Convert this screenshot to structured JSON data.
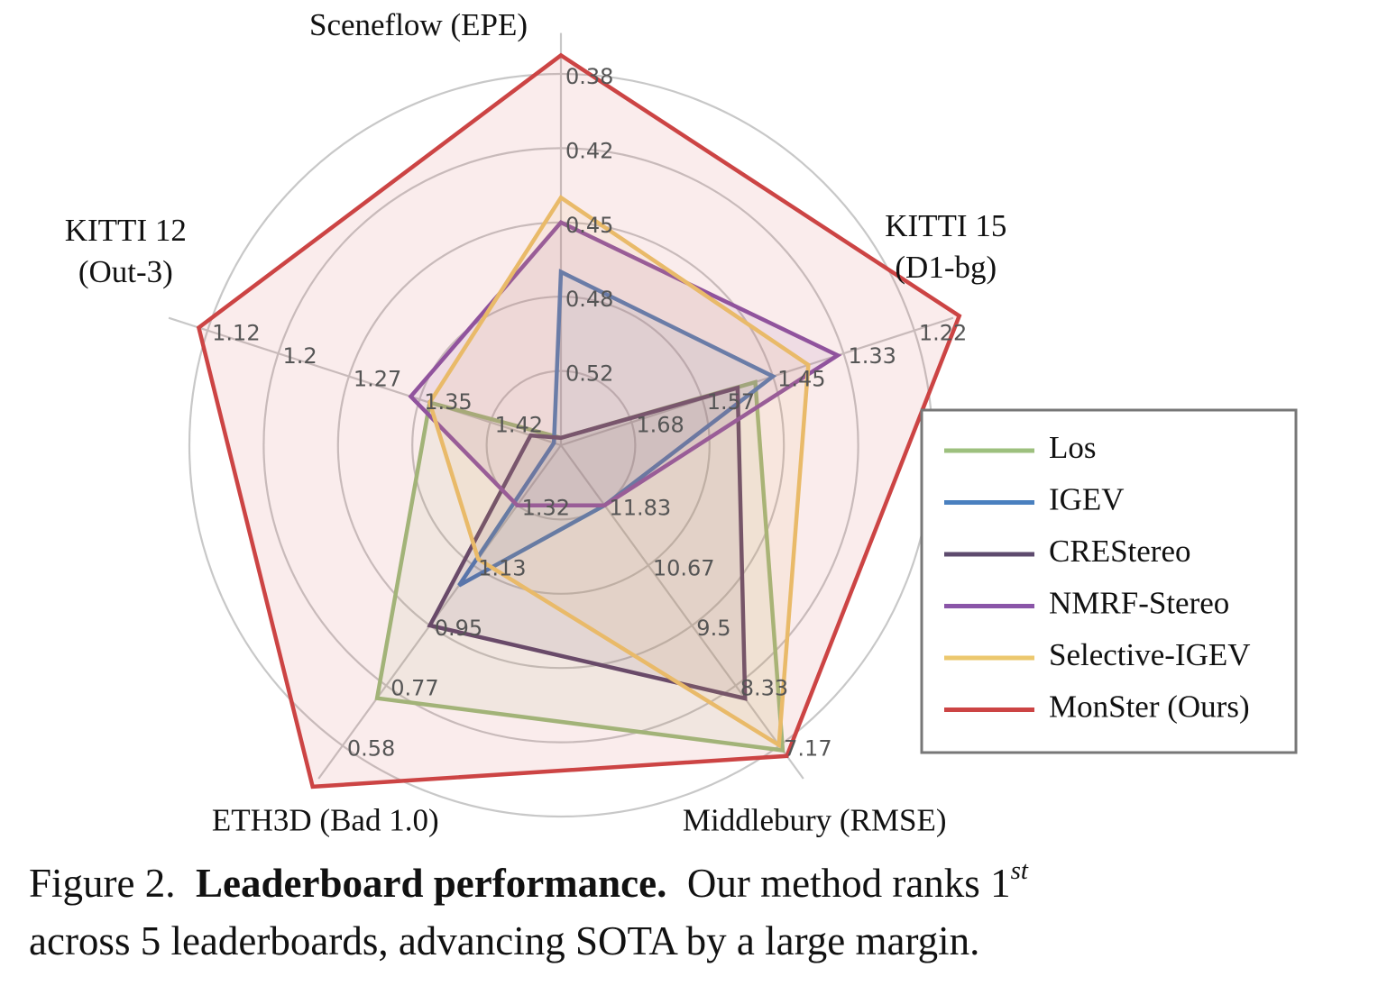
{
  "chart_data": {
    "type": "radar",
    "axes": [
      {
        "name": "Sceneflow (EPE)",
        "lines": [
          "Sceneflow (EPE)"
        ],
        "ticks": [
          "0.38",
          "0.42",
          "0.45",
          "0.48",
          "0.52"
        ]
      },
      {
        "name": "KITTI 15 (D1-bg)",
        "lines": [
          "KITTI 15",
          "(D1-bg)"
        ],
        "ticks": [
          "1.22",
          "1.33",
          "1.45",
          "1.57",
          "1.68"
        ]
      },
      {
        "name": "Middlebury (RMSE)",
        "lines": [
          "Middlebury (RMSE)"
        ],
        "ticks": [
          "7.17",
          "8.33",
          "9.5",
          "10.67",
          "11.83"
        ]
      },
      {
        "name": "ETH3D (Bad 1.0)",
        "lines": [
          "ETH3D (Bad 1.0)"
        ],
        "ticks": [
          "0.58",
          "0.77",
          "0.95",
          "1.13",
          "1.32"
        ]
      },
      {
        "name": "KITTI 12 (Out-3)",
        "lines": [
          "KITTI 12",
          "(Out-3)"
        ],
        "ticks": [
          "1.12",
          "1.2",
          "1.27",
          "1.35",
          "1.42"
        ]
      }
    ],
    "series": [
      {
        "name": "Los",
        "color": "#9dc07e",
        "values": [
          0.63,
          1.48,
          7.08,
          0.73,
          1.36
        ]
      },
      {
        "name": "IGEV",
        "color": "#4a80bf",
        "values": [
          0.47,
          1.45,
          11.83,
          1.07,
          1.52
        ]
      },
      {
        "name": "CREStereo",
        "color": "#5e4b6e",
        "values": [
          0.63,
          1.51,
          8.08,
          0.95,
          1.46
        ]
      },
      {
        "name": "NMRF-Stereo",
        "color": "#8a55a8",
        "values": [
          0.45,
          1.34,
          11.83,
          1.32,
          1.34
        ]
      },
      {
        "name": "Selective-IGEV",
        "color": "#ecc86e",
        "values": [
          0.44,
          1.39,
          7.18,
          1.15,
          1.36
        ]
      },
      {
        "name": "MonSter (Ours)",
        "color": "#cc4444",
        "values": [
          0.37,
          1.15,
          6.97,
          0.45,
          1.11
        ]
      }
    ],
    "legend_position": "right"
  },
  "caption": {
    "prefix": "Figure 2.",
    "bold": "Leaderboard performance.",
    "text_before_sup": "Our method ranks 1",
    "sup": "st",
    "text_after_sup": "across 5 leaderboards, advancing SOTA by a large margin."
  }
}
